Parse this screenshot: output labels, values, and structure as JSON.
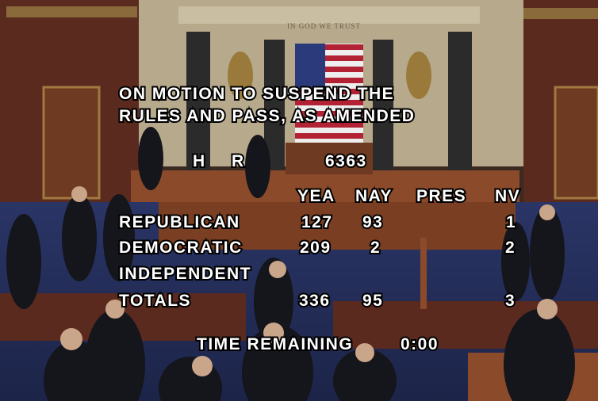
{
  "motion": {
    "line1": "ON MOTION TO SUSPEND THE",
    "line2": "RULES AND PASS, AS AMENDED"
  },
  "bill": {
    "prefix": "H R",
    "number": "6363"
  },
  "columns": {
    "yea": "YEA",
    "nay": "NAY",
    "pres": "PRES",
    "nv": "NV"
  },
  "rows": [
    {
      "party": "REPUBLICAN",
      "yea": 127,
      "nay": 93,
      "nv": 1
    },
    {
      "party": "DEMOCRATIC",
      "yea": 209,
      "nay": 2,
      "nv": 2
    },
    {
      "party": "INDEPENDENT"
    },
    {
      "party": "TOTALS",
      "yea": 336,
      "nay": 95,
      "nv": 3
    }
  ],
  "timer": {
    "label": "TIME REMAINING",
    "value": "0:00"
  }
}
